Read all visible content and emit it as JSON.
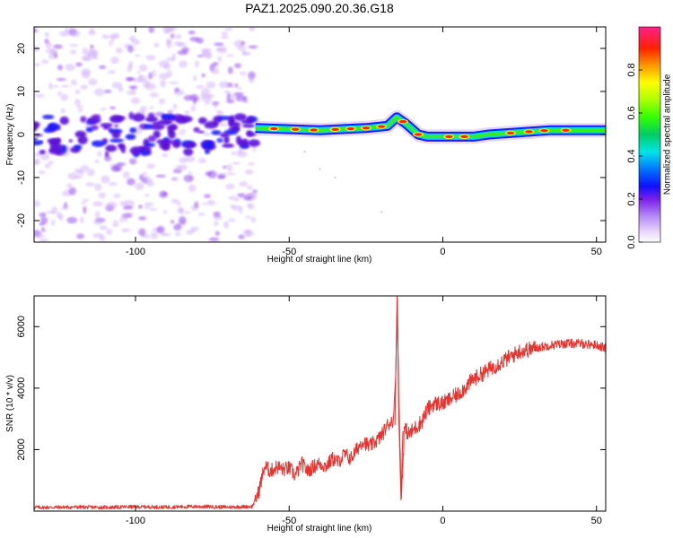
{
  "title": "PAZ1.2025.090.20.36.G18",
  "chart_data": [
    {
      "type": "heatmap",
      "name": "spectrogram",
      "xlabel": "Height of straight line (km)",
      "ylabel": "Frequency (Hz)",
      "xlim": [
        -133,
        53
      ],
      "ylim": [
        -25,
        25
      ],
      "xticks": [
        -100,
        -50,
        0,
        50
      ],
      "yticks": [
        -20,
        -10,
        0,
        10,
        20
      ],
      "colorbar": {
        "label": "Normalized spectral amplitude",
        "range": [
          0,
          1
        ],
        "ticks": [
          "0.0",
          "0.2",
          "0.4",
          "0.6",
          "0.8"
        ]
      },
      "noise_region": {
        "x_from": -133,
        "x_to": -61
      },
      "ridge": {
        "x": [
          -61,
          -40,
          -25,
          -18,
          -15,
          -12,
          -8,
          -5,
          0,
          10,
          15,
          25,
          35,
          45,
          53
        ],
        "y": [
          1.5,
          1.0,
          1.5,
          2.0,
          4.0,
          2.5,
          0.0,
          -0.5,
          -0.5,
          -0.5,
          0.0,
          0.5,
          1.0,
          1.0,
          1.0
        ]
      }
    },
    {
      "type": "line",
      "name": "snr",
      "xlabel": "Height of straight line (km)",
      "ylabel": "SNR (10 * v/v)",
      "xlim": [
        -133,
        53
      ],
      "ylim": [
        0,
        7000
      ],
      "xticks": [
        -100,
        -50,
        0,
        50
      ],
      "yticks": [
        2000,
        4000,
        6000
      ],
      "series": [
        {
          "color": "#e8322d",
          "x": [
            -133,
            -120,
            -110,
            -100,
            -90,
            -80,
            -70,
            -62,
            -60,
            -58,
            -56,
            -54,
            -52,
            -50,
            -48,
            -46,
            -44,
            -42,
            -40,
            -38,
            -36,
            -34,
            -32,
            -30,
            -28,
            -26,
            -24,
            -22,
            -20,
            -18,
            -16,
            -15.3,
            -14.8,
            -14.3,
            -13.5,
            -12.5,
            -11,
            -9,
            -7,
            -5,
            -3,
            0,
            5,
            10,
            15,
            20,
            25,
            30,
            35,
            40,
            45,
            50,
            53
          ],
          "y": [
            120,
            130,
            120,
            140,
            130,
            150,
            130,
            150,
            600,
            1450,
            1300,
            1450,
            1350,
            1400,
            1150,
            1550,
            1300,
            1450,
            1550,
            1450,
            1700,
            1600,
            1850,
            1700,
            2000,
            2300,
            2100,
            2250,
            2450,
            2800,
            3000,
            4600,
            7000,
            3600,
            400,
            2700,
            2500,
            2700,
            2900,
            3300,
            3500,
            3500,
            3800,
            4300,
            4600,
            4900,
            5200,
            5300,
            5400,
            5450,
            5450,
            5400,
            5300
          ]
        }
      ]
    }
  ]
}
